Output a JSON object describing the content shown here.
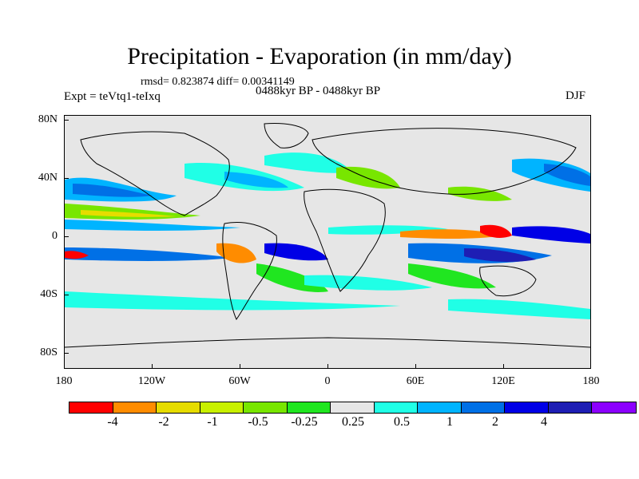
{
  "figure": {
    "title": "Precipitation - Evaporation (in mm/day)",
    "stats": "rmsd= 0.823874 diff= 0.00341149",
    "experiment": "Expt = teVtq1-teIxq",
    "period": "0488kyr BP - 0488kyr BP",
    "season": "DJF"
  },
  "map": {
    "background_color": "#e6e6e6",
    "lat_ticks": [
      "80N",
      "40N",
      "0",
      "40S",
      "80S"
    ],
    "lon_ticks": [
      "180",
      "120W",
      "60W",
      "0",
      "60E",
      "120E",
      "180"
    ]
  },
  "colorbar": {
    "colors": [
      "#ff0000",
      "#ff8c00",
      "#e6dc00",
      "#c8f000",
      "#78e600",
      "#20e620",
      "#e6e6e6",
      "#20ffe6",
      "#00b4ff",
      "#0070e6",
      "#0000e6",
      "#1e1eb4",
      "#8c00ff"
    ],
    "labels": [
      "-4",
      "-2",
      "-1",
      "-0.5",
      "-0.25",
      "0.25",
      "0.5",
      "1",
      "2",
      "4"
    ]
  }
}
